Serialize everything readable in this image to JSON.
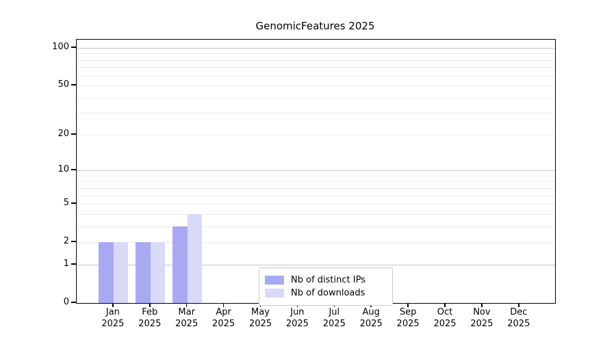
{
  "chart_data": {
    "type": "bar",
    "title": "GenomicFeatures 2025",
    "categories": [
      "Jan 2025",
      "Feb 2025",
      "Mar 2025",
      "Apr 2025",
      "May 2025",
      "Jun 2025",
      "Jul 2025",
      "Aug 2025",
      "Sep 2025",
      "Oct 2025",
      "Nov 2025",
      "Dec 2025"
    ],
    "series": [
      {
        "name": "Nb of distinct IPs",
        "color": "#a9a9f3",
        "values": [
          2,
          2,
          3,
          0,
          0,
          0,
          0,
          0,
          0,
          0,
          0,
          0
        ]
      },
      {
        "name": "Nb of downloads",
        "color": "#d9d9f8",
        "values": [
          2,
          2,
          4,
          0,
          0,
          0,
          0,
          0,
          0,
          0,
          0,
          0
        ]
      }
    ],
    "xlabel": "",
    "ylabel": "",
    "y_axis": {
      "scale": "log10(1+y)",
      "ticks": [
        0,
        1,
        2,
        5,
        10,
        20,
        50,
        100
      ],
      "major_decade_gridlines": [
        1,
        10,
        100
      ],
      "minor_gridlines": [
        3,
        4,
        6,
        7,
        8,
        9,
        30,
        40,
        60,
        70,
        80,
        90
      ],
      "ylim": [
        0,
        115
      ]
    },
    "grid": true,
    "legend_position": "lower center"
  }
}
